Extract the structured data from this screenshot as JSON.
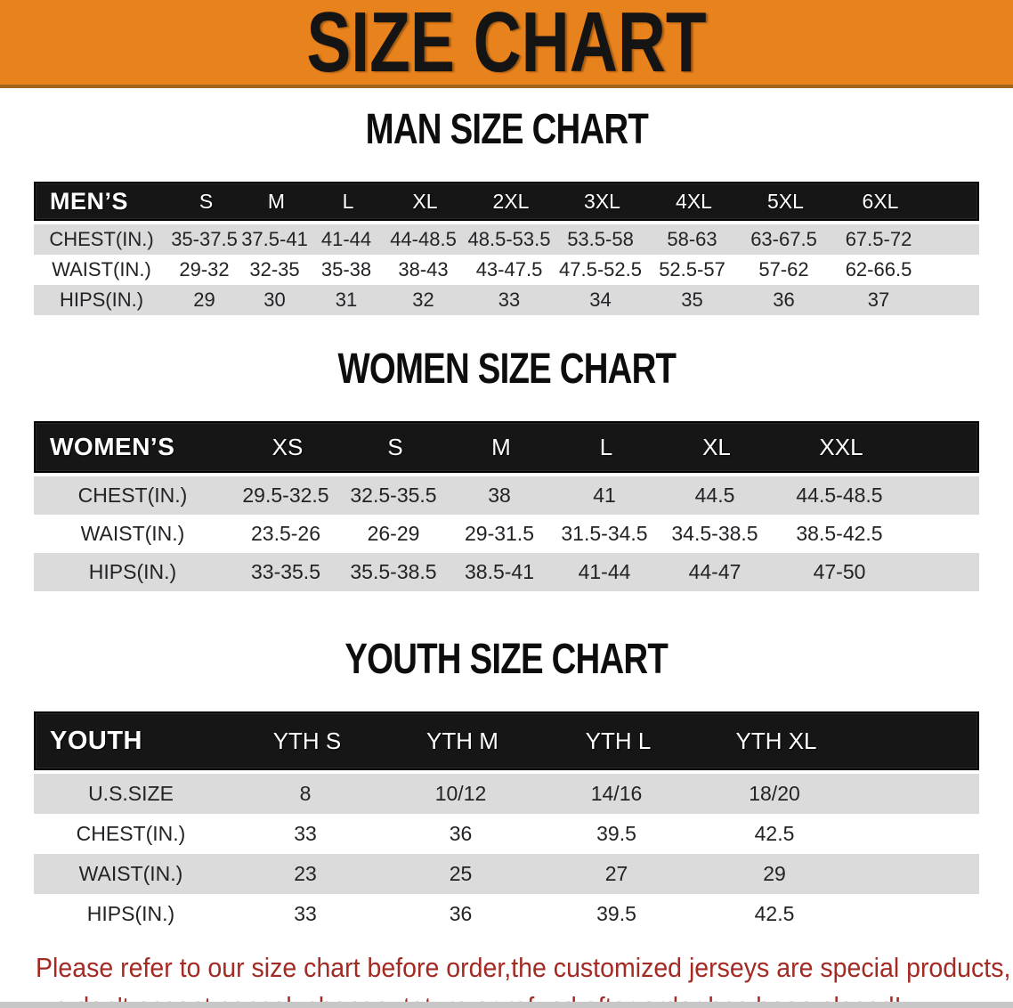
{
  "banner": {
    "title": "SIZE CHART",
    "bg_color": "#e8821c",
    "border_color": "#a2641a",
    "text_color": "#141414"
  },
  "sections": [
    {
      "id": "men",
      "title": "MAN SIZE CHART",
      "header_label": "MEN’S",
      "columns": [
        "S",
        "M",
        "L",
        "XL",
        "2XL",
        "3XL",
        "4XL",
        "5XL",
        "6XL"
      ],
      "rows": [
        {
          "label": "CHEST(IN.)",
          "values": [
            "35-37.5",
            "37.5-41",
            "41-44",
            "44-48.5",
            "48.5-53.5",
            "53.5-58",
            "58-63",
            "63-67.5",
            "67.5-72"
          ]
        },
        {
          "label": "WAIST(IN.)",
          "values": [
            "29-32",
            "32-35",
            "35-38",
            "38-43",
            "43-47.5",
            "47.5-52.5",
            "52.5-57",
            "57-62",
            "62-66.5"
          ]
        },
        {
          "label": "HIPS(IN.)",
          "values": [
            "29",
            "30",
            "31",
            "32",
            "33",
            "34",
            "35",
            "36",
            "37"
          ]
        }
      ]
    },
    {
      "id": "women",
      "title": "WOMEN SIZE CHART",
      "header_label": "WOMEN’S",
      "columns": [
        "XS",
        "S",
        "M",
        "L",
        "XL",
        "XXL"
      ],
      "rows": [
        {
          "label": "CHEST(IN.)",
          "values": [
            "29.5-32.5",
            "32.5-35.5",
            "38",
            "41",
            "44.5",
            "44.5-48.5"
          ]
        },
        {
          "label": "WAIST(IN.)",
          "values": [
            "23.5-26",
            "26-29",
            "29-31.5",
            "31.5-34.5",
            "34.5-38.5",
            "38.5-42.5"
          ]
        },
        {
          "label": "HIPS(IN.)",
          "values": [
            "33-35.5",
            "35.5-38.5",
            "38.5-41",
            "41-44",
            "44-47",
            "47-50"
          ]
        }
      ]
    },
    {
      "id": "youth",
      "title": "YOUTH SIZE CHART",
      "header_label": "YOUTH",
      "columns": [
        "YTH S",
        "YTH M",
        "YTH L",
        "YTH XL"
      ],
      "rows": [
        {
          "label": "U.S.SIZE",
          "values": [
            "8",
            "10/12",
            "14/16",
            "18/20"
          ]
        },
        {
          "label": "CHEST(IN.)",
          "values": [
            "33",
            "36",
            "39.5",
            "42.5"
          ]
        },
        {
          "label": "WAIST(IN.)",
          "values": [
            "23",
            "25",
            "27",
            "29"
          ]
        },
        {
          "label": "HIPS(IN.)",
          "values": [
            "33",
            "36",
            "39.5",
            "42.5"
          ]
        }
      ]
    }
  ],
  "table_style": {
    "header_bg": "#161616",
    "header_text": "#ffffff",
    "stripe_bg": "#dbdbdb",
    "cell_text": "#232327"
  },
  "disclaimer": {
    "line1": "Please refer to our size chart before order,the customized jerseys are special products,",
    "line2": "we don't accept cancel, change, teturn or refund after order has been placed!",
    "color": "#a42a24"
  }
}
